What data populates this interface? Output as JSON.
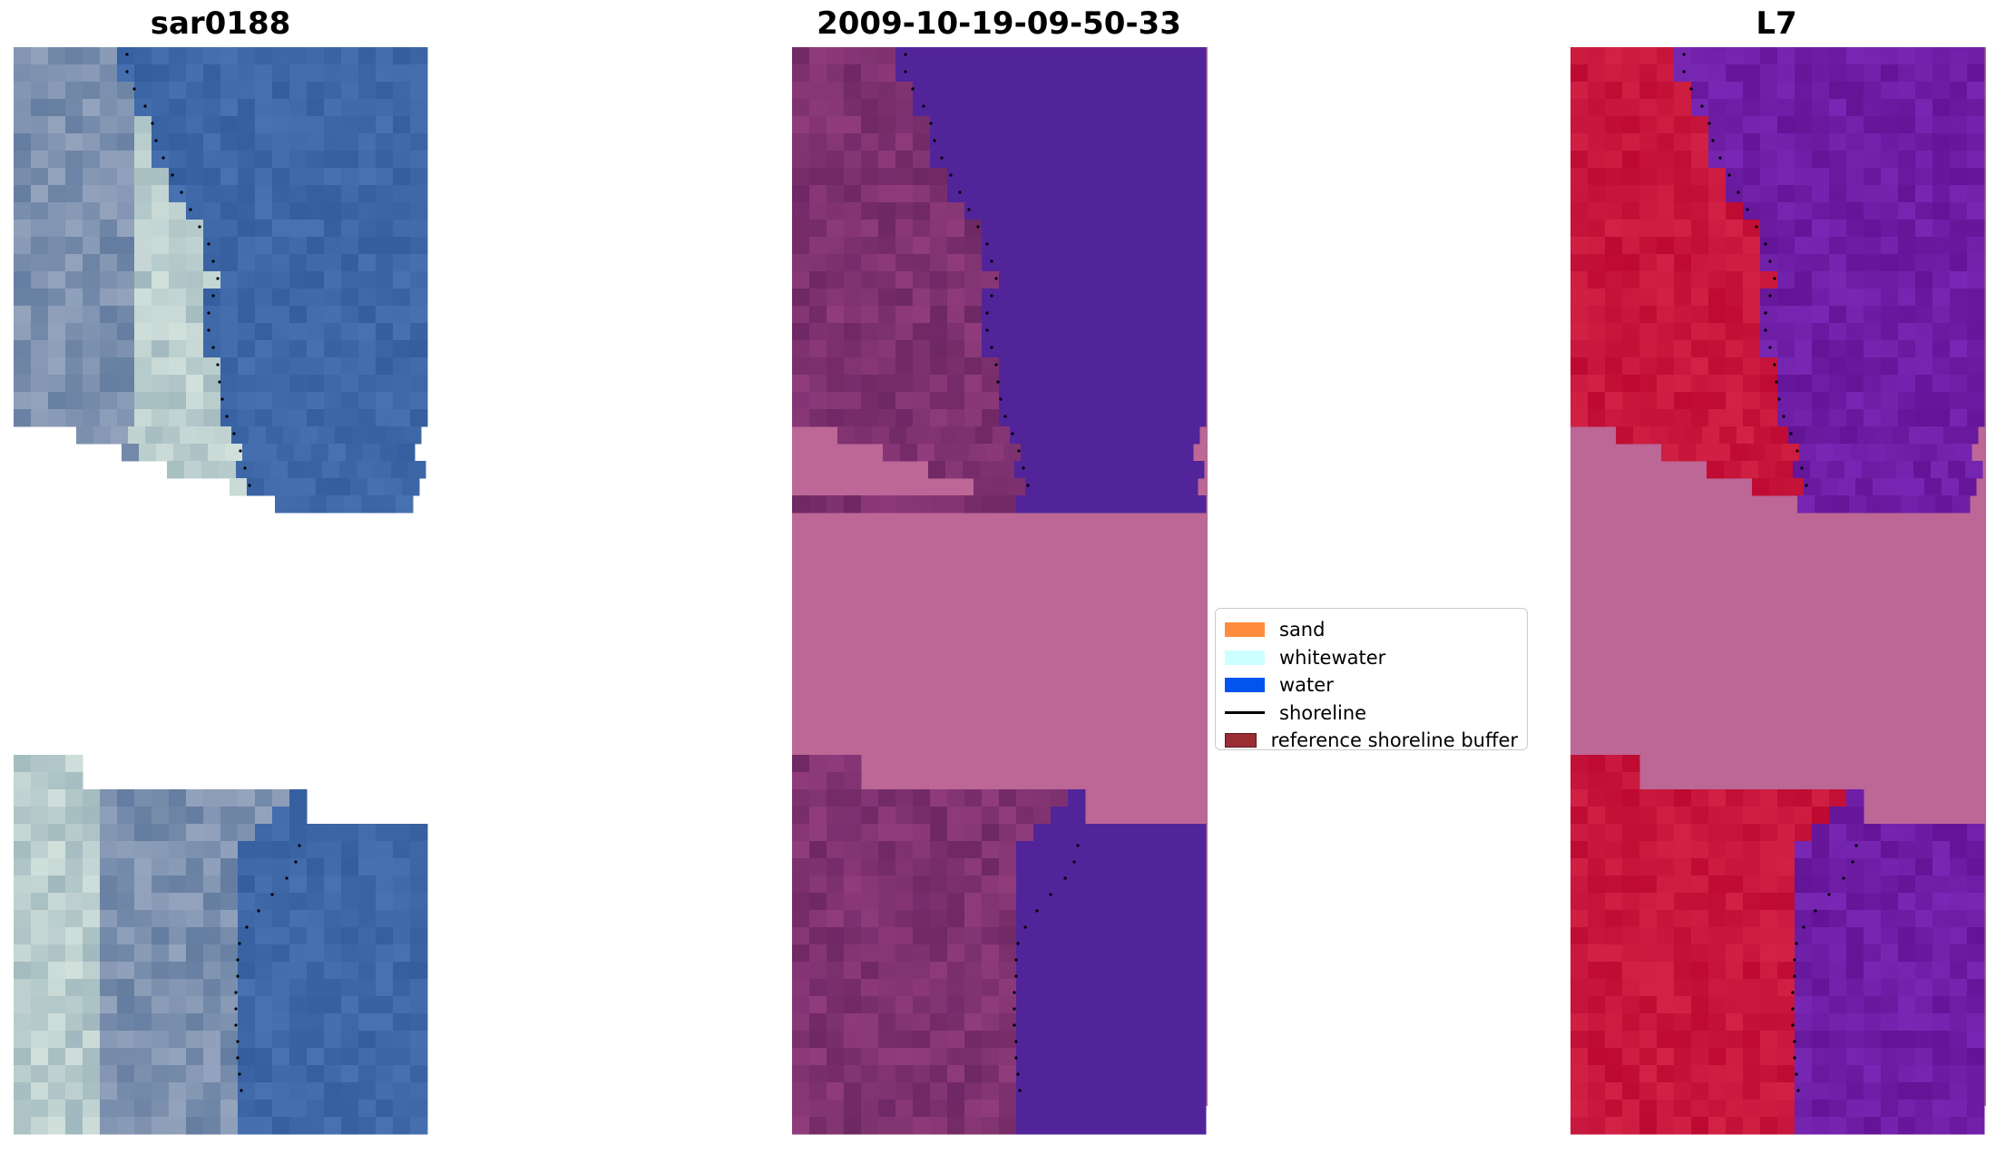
{
  "panels": [
    {
      "title": "sar0188",
      "image": "rgb satellite image"
    },
    {
      "title": "2009-10-19-09-50-33",
      "image": "classified image"
    },
    {
      "title": "L7",
      "image": "mndwi image"
    }
  ],
  "legend": {
    "items": [
      {
        "label": "sand",
        "color": "#ff8c3d",
        "kind": "patch"
      },
      {
        "label": "whitewater",
        "color": "#ccffff",
        "kind": "patch"
      },
      {
        "label": "water",
        "color": "#0055ee",
        "kind": "patch"
      },
      {
        "label": "shoreline",
        "color": "#000000",
        "kind": "line"
      },
      {
        "label": "reference shoreline buffer",
        "color": "#9b2d35",
        "kind": "patch"
      }
    ]
  },
  "colors": {
    "rgb_water": "#3e68a8",
    "rgb_land": "#6f86a6",
    "class_nodata": "#bc6796",
    "class_water": "#52249a",
    "class_land": "#7a2c6e",
    "mndwi_nodata": "#bc6796",
    "mndwi_land": "#c2123f",
    "mndwi_water": "#6c2098"
  }
}
